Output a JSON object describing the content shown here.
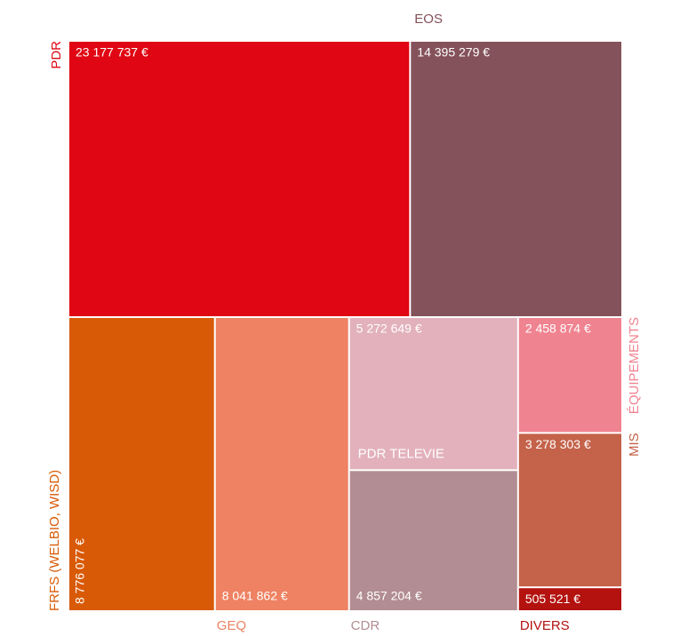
{
  "chart_data": {
    "type": "treemap",
    "categories": [
      "PDR",
      "EOS",
      "FRFS (WELBIO, WISD)",
      "GEQ",
      "PDR TELEVIE",
      "CDR",
      "ÉQUIPEMENTS",
      "MIS",
      "DIVERS"
    ],
    "values": [
      23177737,
      14395279,
      8776077,
      8041862,
      5272649,
      4857204,
      2458874,
      3278303,
      505521
    ],
    "value_labels": [
      "23 177 737 €",
      "14 395 279 €",
      "8 776 077 €",
      "8 041 862 €",
      "5 272 649 €",
      "4 857 204 €",
      "2 458 874 €",
      "3 278 303 €",
      "505 521 €"
    ],
    "colors": [
      "#e00613",
      "#84525a",
      "#d95a06",
      "#ee8262",
      "#e2b1bc",
      "#b28d93",
      "#f08390",
      "#c4624a",
      "#b3120f"
    ]
  }
}
